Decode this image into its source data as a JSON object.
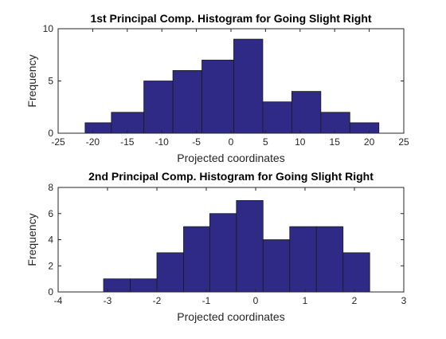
{
  "chart_data": [
    {
      "type": "bar",
      "title": "1st Principal Comp. Histogram for Going Slight Right",
      "xlabel": "Projected coordinates",
      "ylabel": "Frequency",
      "xlim": [
        -25,
        25
      ],
      "ylim": [
        0,
        10
      ],
      "xticks": [
        "-25",
        "-20",
        "-15",
        "-10",
        "-5",
        "0",
        "5",
        "10",
        "15",
        "20",
        "25"
      ],
      "yticks": [
        "0",
        "5",
        "10"
      ],
      "bin_edges": [
        -21.1,
        -17.3,
        -12.6,
        -8.4,
        -4.2,
        0.4,
        4.6,
        8.8,
        13.0,
        17.2,
        21.4
      ],
      "values": [
        1,
        2,
        5,
        6,
        7,
        9,
        3,
        4,
        2,
        1
      ],
      "bar_color": "#2e2a85",
      "grid": false,
      "legend": "none"
    },
    {
      "type": "bar",
      "title": "2nd Principal Comp. Histogram for Going Slight Right",
      "xlabel": "Projected coordinates",
      "ylabel": "Frequency",
      "xlim": [
        -4,
        3
      ],
      "ylim": [
        0,
        8
      ],
      "xticks": [
        "-4",
        "-3",
        "-2",
        "-1",
        "0",
        "1",
        "2",
        "3"
      ],
      "yticks": [
        "0",
        "2",
        "4",
        "6",
        "8"
      ],
      "bin_edges": [
        -3.08,
        -2.54,
        -2.0,
        -1.46,
        -0.93,
        -0.39,
        0.15,
        0.69,
        1.23,
        1.77,
        2.31
      ],
      "values": [
        1,
        1,
        3,
        5,
        6,
        7,
        4,
        5,
        5,
        3
      ],
      "bar_color": "#2e2a85",
      "grid": false,
      "legend": "none"
    }
  ]
}
